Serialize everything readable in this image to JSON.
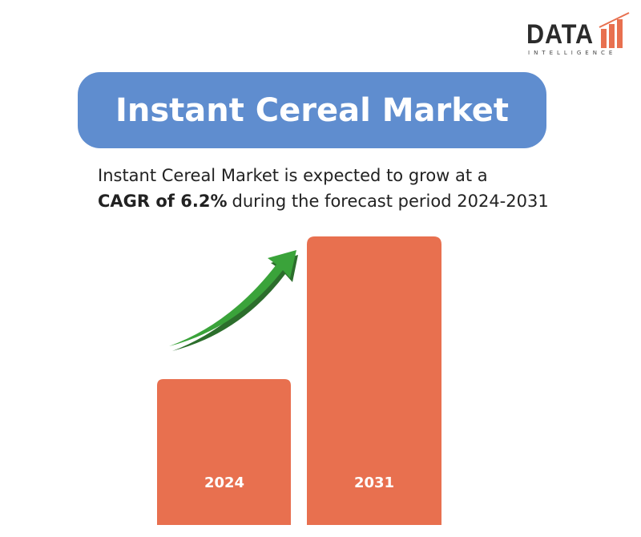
{
  "logo": {
    "name": "DATA",
    "tagline": "INTELLIGENCE"
  },
  "title": "Instant Cereal Market",
  "description": {
    "line1": "Instant Cereal Market is expected to grow at a",
    "highlight": "CAGR of 6.2%",
    "rest": "during the forecast period 2024-2031"
  },
  "bars": [
    {
      "label": "2024"
    },
    {
      "label": "2031"
    }
  ]
}
